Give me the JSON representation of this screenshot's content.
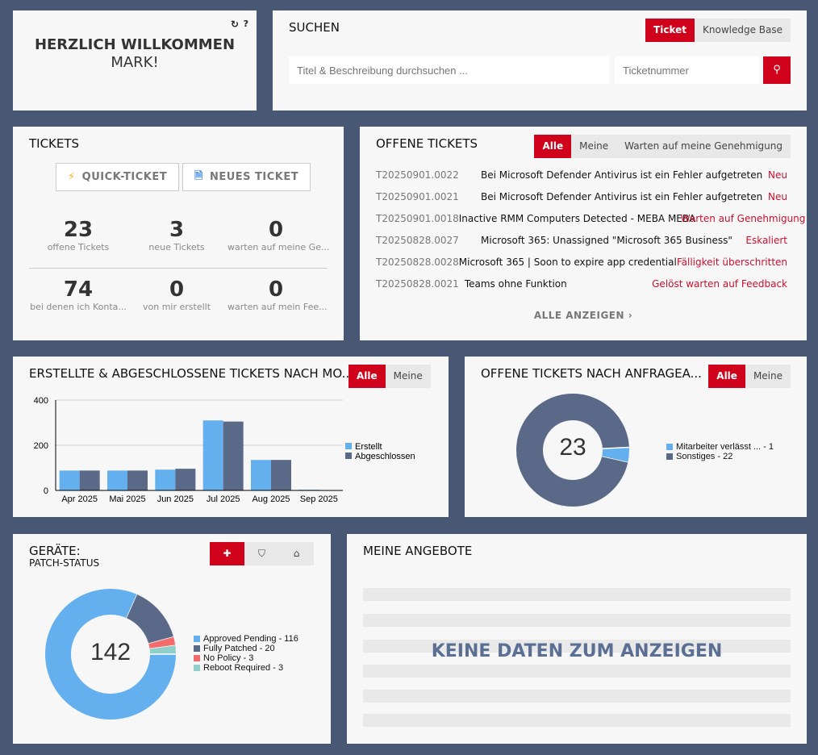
{
  "welcome": {
    "line1": "HERZLICH WILLKOMMEN",
    "line2": "MARK!",
    "refresh": "↻",
    "help": "?"
  },
  "search": {
    "title": "SUCHEN",
    "tabs": [
      "Ticket",
      "Knowledge Base"
    ],
    "placeholder": "Titel & Beschreibung durchsuchen ...",
    "number_placeholder": "Ticketnummer"
  },
  "tickets": {
    "title": "TICKETS",
    "quick": "QUICK-TICKET",
    "new": "NEUES TICKET",
    "stats": [
      {
        "v": "23",
        "l": "offene Tickets"
      },
      {
        "v": "3",
        "l": "neue Tickets"
      },
      {
        "v": "0",
        "l": "warten auf meine Ge..."
      },
      {
        "v": "74",
        "l": "bei denen ich Konta..."
      },
      {
        "v": "0",
        "l": "von mir erstellt"
      },
      {
        "v": "0",
        "l": "warten auf mein Fee..."
      }
    ]
  },
  "open": {
    "title": "OFFENE TICKETS",
    "tabs": [
      "Alle",
      "Meine",
      "Warten auf meine Genehmigung"
    ],
    "all": "ALLE ANZEIGEN",
    "rows": [
      {
        "id": "T20250901.0022",
        "subject": "Bei Microsoft Defender Antivirus ist ein Fehler aufgetreten",
        "status": "Neu"
      },
      {
        "id": "T20250901.0021",
        "subject": "Bei Microsoft Defender Antivirus ist ein Fehler aufgetreten",
        "status": "Neu"
      },
      {
        "id": "T20250901.0018",
        "subject": "Inactive RMM Computers Detected - MEBA MEBA",
        "status": "Warten auf Genehmigung"
      },
      {
        "id": "T20250828.0027",
        "subject": "Microsoft 365: Unassigned \"Microsoft 365 Business\"",
        "status": "Eskaliert"
      },
      {
        "id": "T20250828.0028",
        "subject": "Microsoft 365 | Soon to expire app credential",
        "status": "Fälligkeit überschritten"
      },
      {
        "id": "T20250828.0021",
        "subject": "Teams ohne Funktion",
        "status": "Gelöst warten auf Feedback"
      }
    ]
  },
  "bar": {
    "title": "ERSTELLTE & ABGESCHLOSSENE TICKETS NACH MO...",
    "tabs": [
      "Alle",
      "Meine"
    ]
  },
  "donut1": {
    "title": "OFFENE TICKETS NACH ANFRAGEA...",
    "tabs": [
      "Alle",
      "Meine"
    ],
    "center": "23"
  },
  "patch": {
    "title": "GERÄTE:",
    "subtitle": "PATCH-STATUS",
    "center": "142",
    "icons": [
      "puzzle-icon",
      "shield-icon",
      "toolbox-icon"
    ]
  },
  "offers": {
    "title": "MEINE ANGEBOTE",
    "empty": "KEINE DATEN ZUM ANZEIGEN"
  },
  "colors": {
    "accent": "#d0021b",
    "light": "#64b0ee",
    "dark": "#5a6987",
    "red": "#f46b6b",
    "teal": "#8fcfc8"
  },
  "chart_data": [
    {
      "type": "bar",
      "categories": [
        "Apr 2025",
        "Mai 2025",
        "Jun 2025",
        "Jul 2025",
        "Aug 2025",
        "Sep 2025"
      ],
      "ylim": [
        0,
        400
      ],
      "yticks": [
        "0",
        "200",
        "400"
      ],
      "legend": "right",
      "series": [
        {
          "name": "Erstellt",
          "values": [
            88,
            88,
            92,
            310,
            135,
            3
          ]
        },
        {
          "name": "Abgeschlossen",
          "values": [
            88,
            88,
            96,
            305,
            135,
            0
          ]
        }
      ]
    },
    {
      "type": "pie",
      "legend": "right",
      "labels": [
        "Mitarbeiter verlässt ... - 1",
        "Sonstiges - 22"
      ],
      "values": [
        1,
        22
      ]
    },
    {
      "type": "pie",
      "legend": "right",
      "labels": [
        "Approved Pending - 116",
        "Fully Patched - 20",
        "No Policy - 3",
        "Reboot Required - 3"
      ],
      "values": [
        116,
        20,
        3,
        3
      ]
    }
  ]
}
